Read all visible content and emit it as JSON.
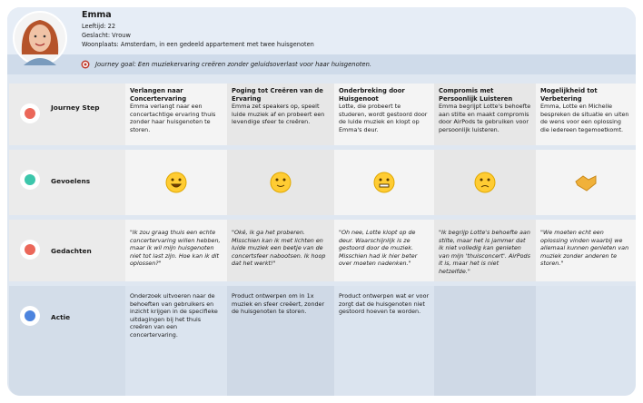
{
  "persona": {
    "name": "Emma",
    "age": "Leeftijd: 22",
    "gender": "Geslacht: Vrouw",
    "residence": "Woonplaats: Amsterdam, in een gedeeld appartement met twee huisgenoten"
  },
  "goal": "Journey goal: Een muziekervaring creëren zonder geluidsoverlast voor haar huisgenoten.",
  "row_labels": [
    "Journey Step",
    "Gevoelens",
    "Gedachten",
    "Actie"
  ],
  "steps": [
    {
      "title": "Verlangen naar Concertervaring",
      "text": "Emma verlangt naar een concertachtige ervaring thuis zonder haar huisgenoten te storen."
    },
    {
      "title": "Poging tot Creëren van de Ervaring",
      "text": "Emma zet speakers op, speelt luide muziek af en probeert een levendige sfeer te creëren."
    },
    {
      "title": "Onderbreking door Huisgenoot",
      "text": "Lotte, die probeert te studeren, wordt gestoord door de luide muziek en klopt op Emma's deur."
    },
    {
      "title": "Compromis met Persoonlijk Luisteren",
      "text": "Emma begrijpt Lotte's behoefte aan stilte en maakt compromis door AirPods te gebruiken voor persoonlijk luisteren."
    },
    {
      "title": "Mogelijkheid tot Verbetering",
      "text": "Emma, Lotte en Michelle bespreken de situatie en uiten de wens voor een oplossing die iedereen tegemoetkomt."
    }
  ],
  "thoughts": [
    "\"Ik zou graag thuis een echte concertervaring willen hebben, maar ik wil mijn huisgenoten niet tot last zijn. Hoe kan ik dit oplossen?\"",
    "\"Oké, ik ga het proberen. Misschien kan ik met lichten en luide muziek een beetje van de concertsfeer nabootsen. Ik hoop dat het werkt!\"",
    "\"Oh nee, Lotte klopt op de deur. Waarschijnlijk is ze gestoord door de muziek. Misschien had ik hier beter over moeten nadenken.\"",
    "\"Ik begrijp Lotte's behoefte aan stilte, maar het is jammer dat ik niet volledig kan genieten van mijn 'thuisconcert'. AirPods it is, maar het is niet hetzelfde.\"",
    "\"We moeten echt een oplossing vinden waarbij we allemaal kunnen genieten van muziek zonder anderen te storen.\""
  ],
  "actions": [
    "Onderzoek uitvoeren naar de behoeften van gebruikers en inzicht krijgen in de specifieke uitdagingen bij het thuis creëren van een concertervaring.",
    "Product ontwerpen om in 1x muziek en sfeer creëert, zonder de huisgenoten te storen.",
    "Product ontwerpen wat er voor zorgt dat de huisgenoten niet gestoord hoeven te worden."
  ]
}
